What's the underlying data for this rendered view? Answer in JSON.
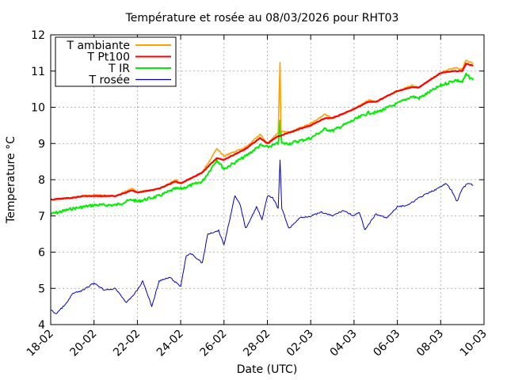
{
  "chart_data": {
    "type": "line",
    "title": "Température et rosée au 08/03/2026 pour RHT03",
    "xlabel": "Date (UTC)",
    "ylabel": "Temperature °C",
    "xlim": [
      "2026-02-18",
      "2026-03-10"
    ],
    "ylim": [
      4,
      12
    ],
    "x_tick_labels": [
      "18-02",
      "20-02",
      "22-02",
      "24-02",
      "26-02",
      "28-02",
      "02-03",
      "04-03",
      "06-03",
      "08-03",
      "10-03"
    ],
    "y_tick_labels": [
      "4",
      "5",
      "6",
      "7",
      "8",
      "9",
      "10",
      "11",
      "12"
    ],
    "grid": true,
    "legend_position": "top-left",
    "series": [
      {
        "name": "T ambiante",
        "color": "#ff9f00",
        "points": [
          [
            "2026-02-18",
            7.45
          ],
          [
            "2026-02-19",
            7.5
          ],
          [
            "2026-02-19T12:00",
            7.55
          ],
          [
            "2026-02-20",
            7.58
          ],
          [
            "2026-02-21",
            7.55
          ],
          [
            "2026-02-21T18:00",
            7.75
          ],
          [
            "2026-02-22",
            7.65
          ],
          [
            "2026-02-23",
            7.75
          ],
          [
            "2026-02-23T18:00",
            8.0
          ],
          [
            "2026-02-24",
            7.9
          ],
          [
            "2026-02-25",
            8.2
          ],
          [
            "2026-02-25T16:00",
            8.85
          ],
          [
            "2026-02-26",
            8.65
          ],
          [
            "2026-02-27",
            8.9
          ],
          [
            "2026-02-27T16:00",
            9.25
          ],
          [
            "2026-02-28",
            9.0
          ],
          [
            "2026-02-28T12:00",
            9.3
          ],
          [
            "2026-02-28T14:00",
            11.25
          ],
          [
            "2026-02-28T15:00",
            9.35
          ],
          [
            "2026-03-01",
            9.3
          ],
          [
            "2026-03-02",
            9.55
          ],
          [
            "2026-03-02T16:00",
            9.8
          ],
          [
            "2026-03-03",
            9.7
          ],
          [
            "2026-03-04",
            9.95
          ],
          [
            "2026-03-04T16:00",
            10.2
          ],
          [
            "2026-03-05",
            10.15
          ],
          [
            "2026-03-06",
            10.45
          ],
          [
            "2026-03-06T16:00",
            10.6
          ],
          [
            "2026-03-07",
            10.55
          ],
          [
            "2026-03-08",
            10.95
          ],
          [
            "2026-03-08T16:00",
            11.1
          ],
          [
            "2026-03-09",
            11.05
          ],
          [
            "2026-03-09T04:00",
            11.3
          ],
          [
            "2026-03-09T12:00",
            11.2
          ]
        ]
      },
      {
        "name": "T Pt100",
        "color": "#ff0000",
        "points": [
          [
            "2026-02-18",
            7.45
          ],
          [
            "2026-02-19",
            7.5
          ],
          [
            "2026-02-19T12:00",
            7.55
          ],
          [
            "2026-02-20",
            7.55
          ],
          [
            "2026-02-21",
            7.55
          ],
          [
            "2026-02-21T18:00",
            7.7
          ],
          [
            "2026-02-22",
            7.65
          ],
          [
            "2026-02-23",
            7.75
          ],
          [
            "2026-02-23T18:00",
            7.95
          ],
          [
            "2026-02-24",
            7.9
          ],
          [
            "2026-02-25",
            8.2
          ],
          [
            "2026-02-25T16:00",
            8.6
          ],
          [
            "2026-02-26",
            8.55
          ],
          [
            "2026-02-27",
            8.85
          ],
          [
            "2026-02-27T16:00",
            9.15
          ],
          [
            "2026-02-28",
            9.0
          ],
          [
            "2026-02-28T12:00",
            9.2
          ],
          [
            "2026-03-01",
            9.3
          ],
          [
            "2026-03-02",
            9.5
          ],
          [
            "2026-03-02T16:00",
            9.7
          ],
          [
            "2026-03-03",
            9.7
          ],
          [
            "2026-03-04",
            9.95
          ],
          [
            "2026-03-04T16:00",
            10.15
          ],
          [
            "2026-03-05",
            10.15
          ],
          [
            "2026-03-06",
            10.45
          ],
          [
            "2026-03-06T16:00",
            10.55
          ],
          [
            "2026-03-07",
            10.55
          ],
          [
            "2026-03-08",
            10.95
          ],
          [
            "2026-03-08T16:00",
            11.0
          ],
          [
            "2026-03-09",
            11.0
          ],
          [
            "2026-03-09T04:00",
            11.2
          ],
          [
            "2026-03-09T12:00",
            11.15
          ]
        ]
      },
      {
        "name": "T IR",
        "color": "#00ee00",
        "points": [
          [
            "2026-02-18",
            7.05
          ],
          [
            "2026-02-19",
            7.2
          ],
          [
            "2026-02-20",
            7.3
          ],
          [
            "2026-02-21",
            7.3
          ],
          [
            "2026-02-21T18:00",
            7.45
          ],
          [
            "2026-02-22",
            7.4
          ],
          [
            "2026-02-23",
            7.55
          ],
          [
            "2026-02-23T18:00",
            7.75
          ],
          [
            "2026-02-24",
            7.75
          ],
          [
            "2026-02-25",
            7.95
          ],
          [
            "2026-02-25T16:00",
            8.55
          ],
          [
            "2026-02-26",
            8.3
          ],
          [
            "2026-02-27",
            8.65
          ],
          [
            "2026-02-27T16:00",
            8.95
          ],
          [
            "2026-02-28",
            8.9
          ],
          [
            "2026-02-28T12:00",
            9.0
          ],
          [
            "2026-02-28T14:00",
            9.6
          ],
          [
            "2026-02-28T16:00",
            9.0
          ],
          [
            "2026-03-01",
            9.0
          ],
          [
            "2026-03-02",
            9.15
          ],
          [
            "2026-03-02T16:00",
            9.4
          ],
          [
            "2026-03-03",
            9.35
          ],
          [
            "2026-03-04",
            9.65
          ],
          [
            "2026-03-04T16:00",
            9.85
          ],
          [
            "2026-03-05",
            9.85
          ],
          [
            "2026-03-06",
            10.1
          ],
          [
            "2026-03-06T16:00",
            10.3
          ],
          [
            "2026-03-07",
            10.25
          ],
          [
            "2026-03-08",
            10.6
          ],
          [
            "2026-03-08T16:00",
            10.75
          ],
          [
            "2026-03-09",
            10.7
          ],
          [
            "2026-03-09T04:00",
            10.9
          ],
          [
            "2026-03-09T12:00",
            10.75
          ]
        ]
      },
      {
        "name": "T rosée",
        "color": "#0000c8",
        "points": [
          [
            "2026-02-18",
            4.4
          ],
          [
            "2026-02-18T06:00",
            4.3
          ],
          [
            "2026-02-18T18:00",
            4.6
          ],
          [
            "2026-02-19",
            4.85
          ],
          [
            "2026-02-19T12:00",
            4.95
          ],
          [
            "2026-02-20",
            5.15
          ],
          [
            "2026-02-20T12:00",
            4.95
          ],
          [
            "2026-02-21",
            5.0
          ],
          [
            "2026-02-21T12:00",
            4.6
          ],
          [
            "2026-02-22",
            4.95
          ],
          [
            "2026-02-22T06:00",
            5.2
          ],
          [
            "2026-02-22T16:00",
            4.5
          ],
          [
            "2026-02-23",
            5.2
          ],
          [
            "2026-02-23T12:00",
            5.3
          ],
          [
            "2026-02-24",
            5.05
          ],
          [
            "2026-02-24T06:00",
            5.9
          ],
          [
            "2026-02-24T12:00",
            5.95
          ],
          [
            "2026-02-25",
            5.7
          ],
          [
            "2026-02-25T06:00",
            6.5
          ],
          [
            "2026-02-25T18:00",
            6.6
          ],
          [
            "2026-02-26",
            6.2
          ],
          [
            "2026-02-26T12:00",
            7.55
          ],
          [
            "2026-02-26T18:00",
            7.3
          ],
          [
            "2026-02-27",
            6.65
          ],
          [
            "2026-02-27T12:00",
            7.25
          ],
          [
            "2026-02-27T18:00",
            6.9
          ],
          [
            "2026-02-28",
            7.55
          ],
          [
            "2026-02-28T06:00",
            7.5
          ],
          [
            "2026-02-28T12:00",
            7.2
          ],
          [
            "2026-02-28T14:00",
            8.55
          ],
          [
            "2026-02-28T16:00",
            7.2
          ],
          [
            "2026-03-01",
            6.65
          ],
          [
            "2026-03-01T12:00",
            6.95
          ],
          [
            "2026-03-02",
            7.0
          ],
          [
            "2026-03-02T12:00",
            7.1
          ],
          [
            "2026-03-03",
            7.0
          ],
          [
            "2026-03-03T12:00",
            7.15
          ],
          [
            "2026-03-04",
            7.0
          ],
          [
            "2026-03-04T06:00",
            7.1
          ],
          [
            "2026-03-04T12:00",
            6.6
          ],
          [
            "2026-03-05",
            7.05
          ],
          [
            "2026-03-05T12:00",
            6.95
          ],
          [
            "2026-03-06",
            7.25
          ],
          [
            "2026-03-06T12:00",
            7.3
          ],
          [
            "2026-03-07",
            7.5
          ],
          [
            "2026-03-07T12:00",
            7.65
          ],
          [
            "2026-03-08",
            7.8
          ],
          [
            "2026-03-08T06:00",
            7.9
          ],
          [
            "2026-03-08T12:00",
            7.7
          ],
          [
            "2026-03-08T18:00",
            7.4
          ],
          [
            "2026-03-09",
            7.75
          ],
          [
            "2026-03-09T06:00",
            7.9
          ],
          [
            "2026-03-09T12:00",
            7.85
          ]
        ]
      }
    ]
  }
}
